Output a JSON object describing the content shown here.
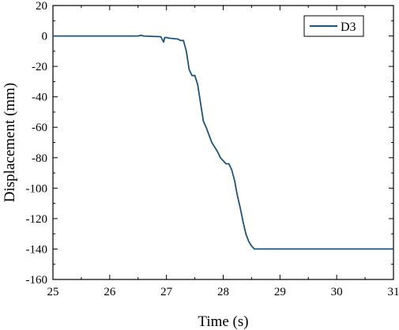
{
  "chart_data": {
    "type": "line",
    "title": "",
    "xlabel": "Time (s)",
    "ylabel": "Displacement (mm)",
    "xlim": [
      25,
      31
    ],
    "ylim": [
      -160,
      20
    ],
    "xticks": [
      25,
      26,
      27,
      28,
      29,
      30,
      31
    ],
    "yticks": [
      20,
      0,
      -20,
      -40,
      -60,
      -80,
      -100,
      -120,
      -140,
      -160
    ],
    "grid": false,
    "legend": {
      "placement": "top-right",
      "entries": [
        "D3"
      ]
    },
    "series": [
      {
        "name": "D3",
        "color": "#1f5378",
        "x": [
          25.0,
          26.5,
          26.55,
          26.6,
          26.9,
          26.95,
          26.97,
          27.0,
          27.05,
          27.2,
          27.25,
          27.3,
          27.35,
          27.4,
          27.45,
          27.5,
          27.55,
          27.6,
          27.65,
          27.7,
          27.75,
          27.8,
          27.85,
          27.9,
          27.95,
          28.0,
          28.05,
          28.1,
          28.15,
          28.2,
          28.25,
          28.3,
          28.35,
          28.4,
          28.45,
          28.5,
          28.55,
          28.58,
          29.0,
          30.0,
          31.0
        ],
        "y": [
          0,
          0,
          0.5,
          0,
          -0.5,
          -4,
          -1,
          -1,
          -1.5,
          -2,
          -3,
          -3,
          -10,
          -22,
          -26,
          -26,
          -32,
          -44,
          -56,
          -60,
          -65,
          -70,
          -73,
          -76,
          -80,
          -82,
          -84,
          -84,
          -88,
          -95,
          -105,
          -113,
          -122,
          -130,
          -135,
          -138,
          -140,
          -140,
          -140,
          -140,
          -140
        ]
      }
    ]
  }
}
